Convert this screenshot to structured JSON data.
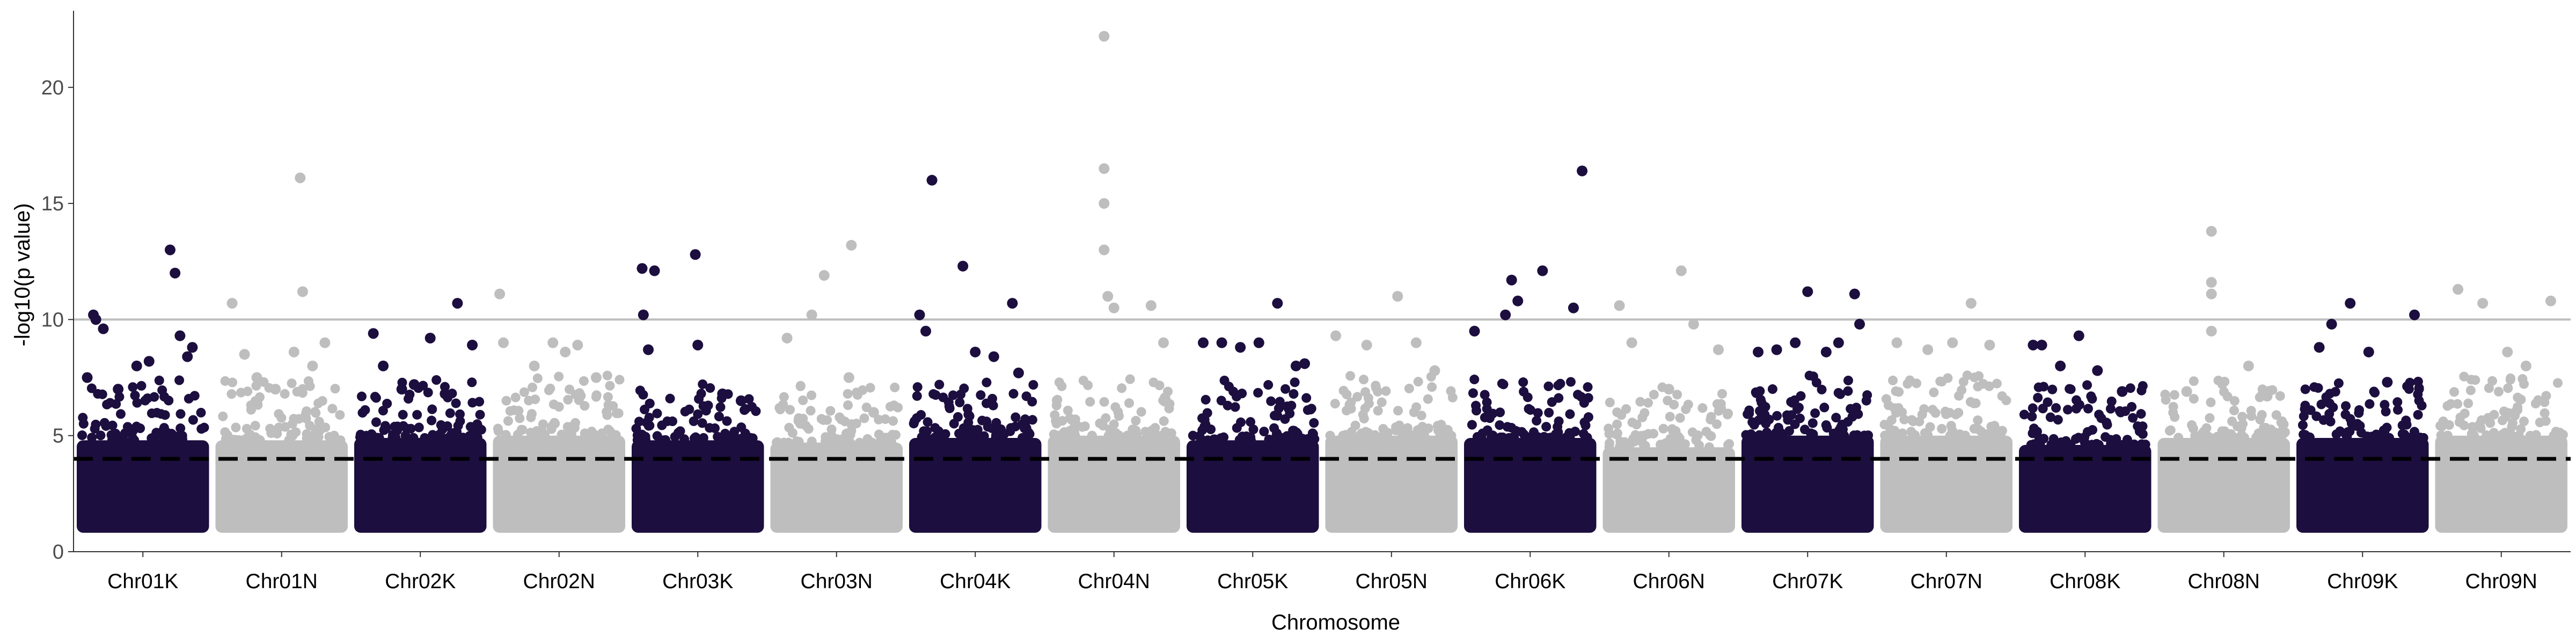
{
  "chart_data": {
    "type": "scatter",
    "subtype": "manhattan",
    "xlabel": "Chromosome",
    "ylabel": "-log10(p value)",
    "ylim": [
      0,
      23.3
    ],
    "y_ticks": [
      0,
      5,
      10,
      15,
      20
    ],
    "grid": false,
    "legend": "none",
    "reference_lines": [
      {
        "y": 10,
        "style": "solid",
        "color": "#bdbdbd"
      },
      {
        "y": 4,
        "style": "dashed",
        "color": "#000000"
      }
    ],
    "colors": {
      "odd_chromosome": "#1c0e3e",
      "even_chromosome": "#bebebe"
    },
    "categories": [
      "Chr01K",
      "Chr01N",
      "Chr02K",
      "Chr02N",
      "Chr03K",
      "Chr03N",
      "Chr04K",
      "Chr04N",
      "Chr05K",
      "Chr05N",
      "Chr06K",
      "Chr06N",
      "Chr07K",
      "Chr07N",
      "Chr08K",
      "Chr08N",
      "Chr09K",
      "Chr09N"
    ],
    "series": [
      {
        "chromosome": "Chr01K",
        "baseline": 1.0,
        "body_top": 4.8,
        "peaks": [
          [
            0.05,
            7.5
          ],
          [
            0.1,
            10.2
          ],
          [
            0.12,
            10.0
          ],
          [
            0.18,
            9.6
          ],
          [
            0.3,
            7.0
          ],
          [
            0.45,
            8.0
          ],
          [
            0.55,
            8.2
          ],
          [
            0.72,
            13.0
          ],
          [
            0.76,
            12.0
          ],
          [
            0.8,
            9.3
          ],
          [
            0.86,
            8.4
          ],
          [
            0.9,
            8.8
          ]
        ]
      },
      {
        "chromosome": "Chr01N",
        "baseline": 1.0,
        "body_top": 4.8,
        "peaks": [
          [
            0.1,
            10.7
          ],
          [
            0.2,
            8.5
          ],
          [
            0.3,
            7.5
          ],
          [
            0.45,
            7.0
          ],
          [
            0.6,
            8.6
          ],
          [
            0.65,
            16.1
          ],
          [
            0.67,
            11.2
          ],
          [
            0.75,
            8.0
          ],
          [
            0.85,
            9.0
          ]
        ]
      },
      {
        "chromosome": "Chr02K",
        "baseline": 1.0,
        "body_top": 4.9,
        "peaks": [
          [
            0.12,
            9.4
          ],
          [
            0.2,
            8.0
          ],
          [
            0.35,
            7.0
          ],
          [
            0.45,
            7.2
          ],
          [
            0.58,
            9.2
          ],
          [
            0.7,
            6.8
          ],
          [
            0.8,
            10.7
          ],
          [
            0.92,
            8.9
          ]
        ]
      },
      {
        "chromosome": "Chr02N",
        "baseline": 1.0,
        "body_top": 5.0,
        "peaks": [
          [
            0.02,
            11.1
          ],
          [
            0.05,
            9.0
          ],
          [
            0.3,
            8.0
          ],
          [
            0.45,
            9.0
          ],
          [
            0.55,
            8.6
          ],
          [
            0.65,
            8.9
          ],
          [
            0.8,
            7.5
          ]
        ]
      },
      {
        "chromosome": "Chr03K",
        "baseline": 1.0,
        "body_top": 4.8,
        "peaks": [
          [
            0.05,
            12.2
          ],
          [
            0.06,
            10.2
          ],
          [
            0.15,
            12.1
          ],
          [
            0.1,
            8.7
          ],
          [
            0.5,
            8.9
          ],
          [
            0.48,
            12.8
          ],
          [
            0.7,
            6.8
          ],
          [
            0.85,
            6.5
          ]
        ]
      },
      {
        "chromosome": "Chr03N",
        "baseline": 1.0,
        "body_top": 4.7,
        "peaks": [
          [
            0.1,
            9.2
          ],
          [
            0.3,
            10.2
          ],
          [
            0.4,
            11.9
          ],
          [
            0.6,
            7.5
          ],
          [
            0.62,
            13.2
          ],
          [
            0.8,
            6.0
          ]
        ]
      },
      {
        "chromosome": "Chr04K",
        "baseline": 1.0,
        "body_top": 4.9,
        "peaks": [
          [
            0.05,
            10.2
          ],
          [
            0.15,
            16.0
          ],
          [
            0.1,
            9.5
          ],
          [
            0.4,
            12.3
          ],
          [
            0.5,
            8.6
          ],
          [
            0.65,
            8.4
          ],
          [
            0.8,
            10.7
          ],
          [
            0.85,
            7.7
          ]
        ]
      },
      {
        "chromosome": "Chr04N",
        "baseline": 1.0,
        "body_top": 5.0,
        "peaks": [
          [
            0.42,
            22.2
          ],
          [
            0.42,
            16.5
          ],
          [
            0.42,
            15.0
          ],
          [
            0.42,
            13.0
          ],
          [
            0.45,
            11.0
          ],
          [
            0.5,
            10.5
          ],
          [
            0.8,
            10.6
          ],
          [
            0.9,
            9.0
          ]
        ]
      },
      {
        "chromosome": "Chr05K",
        "baseline": 1.0,
        "body_top": 4.8,
        "peaks": [
          [
            0.1,
            9.0
          ],
          [
            0.25,
            9.0
          ],
          [
            0.4,
            8.8
          ],
          [
            0.55,
            9.0
          ],
          [
            0.7,
            10.7
          ],
          [
            0.85,
            8.0
          ],
          [
            0.92,
            8.1
          ]
        ]
      },
      {
        "chromosome": "Chr05N",
        "baseline": 1.0,
        "body_top": 5.0,
        "peaks": [
          [
            0.05,
            9.3
          ],
          [
            0.3,
            8.9
          ],
          [
            0.55,
            11.0
          ],
          [
            0.7,
            9.0
          ],
          [
            0.85,
            7.8
          ]
        ]
      },
      {
        "chromosome": "Chr06K",
        "baseline": 1.0,
        "body_top": 4.9,
        "peaks": [
          [
            0.05,
            9.5
          ],
          [
            0.35,
            11.7
          ],
          [
            0.3,
            10.2
          ],
          [
            0.4,
            10.8
          ],
          [
            0.6,
            12.1
          ],
          [
            0.85,
            10.5
          ],
          [
            0.92,
            16.4
          ]
        ]
      },
      {
        "chromosome": "Chr06N",
        "baseline": 1.0,
        "body_top": 4.5,
        "peaks": [
          [
            0.1,
            10.6
          ],
          [
            0.2,
            9.0
          ],
          [
            0.5,
            7.0
          ],
          [
            0.6,
            12.1
          ],
          [
            0.7,
            9.8
          ],
          [
            0.9,
            8.7
          ]
        ]
      },
      {
        "chromosome": "Chr07K",
        "baseline": 1.0,
        "body_top": 5.0,
        "peaks": [
          [
            0.1,
            8.6
          ],
          [
            0.25,
            8.7
          ],
          [
            0.4,
            9.0
          ],
          [
            0.5,
            11.2
          ],
          [
            0.65,
            8.6
          ],
          [
            0.75,
            9.0
          ],
          [
            0.88,
            11.1
          ],
          [
            0.92,
            9.8
          ]
        ]
      },
      {
        "chromosome": "Chr07N",
        "baseline": 1.0,
        "body_top": 5.0,
        "peaks": [
          [
            0.1,
            9.0
          ],
          [
            0.35,
            8.7
          ],
          [
            0.55,
            9.0
          ],
          [
            0.7,
            10.7
          ],
          [
            0.85,
            8.9
          ]
        ]
      },
      {
        "chromosome": "Chr08K",
        "baseline": 1.0,
        "body_top": 4.6,
        "peaks": [
          [
            0.08,
            8.9
          ],
          [
            0.15,
            8.9
          ],
          [
            0.3,
            8.0
          ],
          [
            0.45,
            9.3
          ],
          [
            0.6,
            7.8
          ],
          [
            0.8,
            6.9
          ]
        ]
      },
      {
        "chromosome": "Chr08N",
        "baseline": 1.0,
        "body_top": 4.9,
        "peaks": [
          [
            0.2,
            6.9
          ],
          [
            0.4,
            13.8
          ],
          [
            0.4,
            11.6
          ],
          [
            0.4,
            11.1
          ],
          [
            0.4,
            9.5
          ],
          [
            0.7,
            8.0
          ],
          [
            0.85,
            6.7
          ]
        ]
      },
      {
        "chromosome": "Chr09K",
        "baseline": 1.0,
        "body_top": 4.9,
        "peaks": [
          [
            0.15,
            8.8
          ],
          [
            0.25,
            9.8
          ],
          [
            0.4,
            10.7
          ],
          [
            0.55,
            8.6
          ],
          [
            0.7,
            7.3
          ],
          [
            0.92,
            10.2
          ]
        ]
      },
      {
        "chromosome": "Chr09N",
        "baseline": 1.0,
        "body_top": 5.0,
        "peaks": [
          [
            0.15,
            11.3
          ],
          [
            0.35,
            10.7
          ],
          [
            0.55,
            8.6
          ],
          [
            0.7,
            8.0
          ],
          [
            0.9,
            10.8
          ]
        ]
      }
    ]
  }
}
